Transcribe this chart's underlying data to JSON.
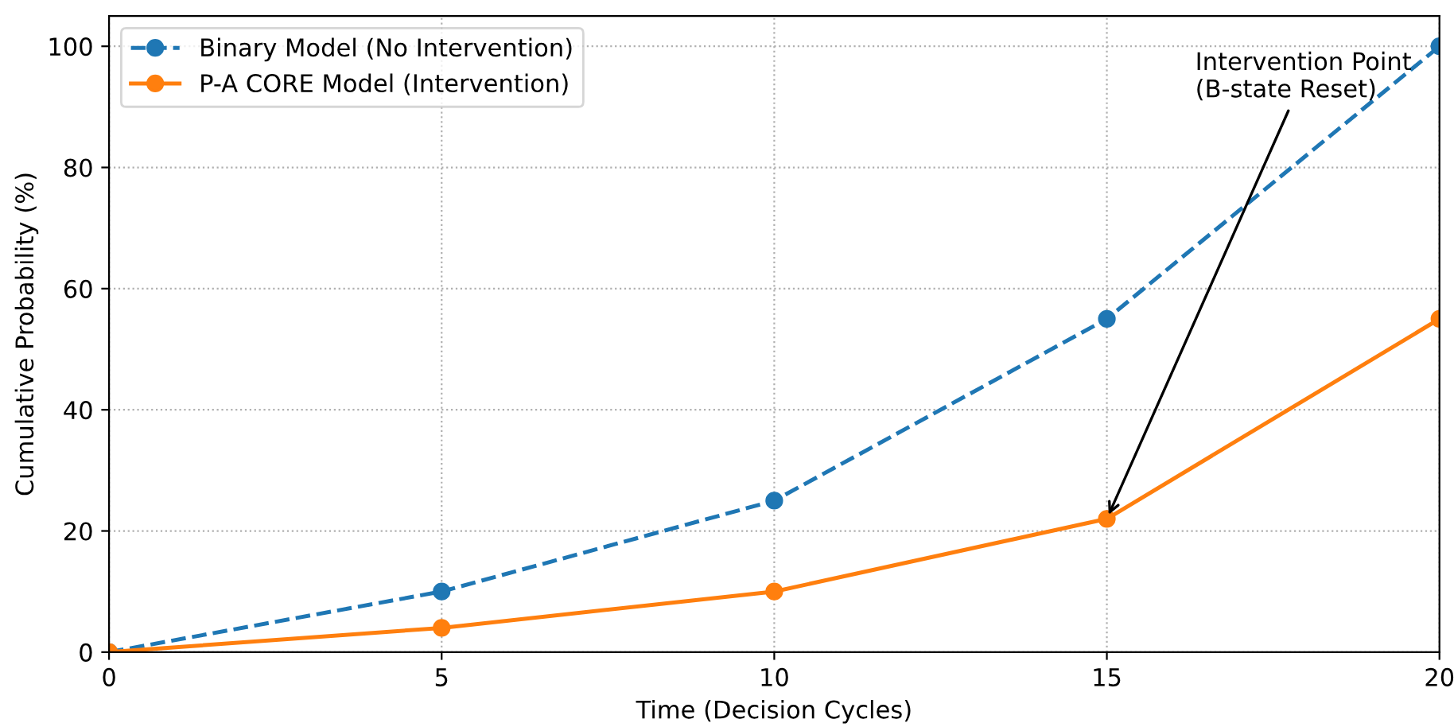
{
  "chart_data": {
    "type": "line",
    "xlabel": "Time (Decision Cycles)",
    "ylabel": "Cumulative Probability (%)",
    "x": [
      0,
      5,
      10,
      15,
      20
    ],
    "series": [
      {
        "name": "Binary Model (No Intervention)",
        "color": "#1f77b4",
        "values": [
          0,
          10,
          25,
          55,
          100
        ],
        "line_style": "dashed"
      },
      {
        "name": "P-A CORE Model (Intervention)",
        "color": "#ff7f0e",
        "values": [
          0,
          4,
          10,
          22,
          55
        ],
        "line_style": "solid"
      }
    ],
    "xlim": [
      0,
      20
    ],
    "xticks": [
      0,
      5,
      10,
      15,
      20
    ],
    "ylim": [
      0,
      105
    ],
    "yticks": [
      0,
      20,
      40,
      60,
      80,
      100
    ],
    "grid": true,
    "legend": "top left",
    "marker": "circle",
    "annotations": [
      {
        "text": "Intervention Point\n(B-state Reset)",
        "x": 15,
        "y": 22
      }
    ]
  }
}
